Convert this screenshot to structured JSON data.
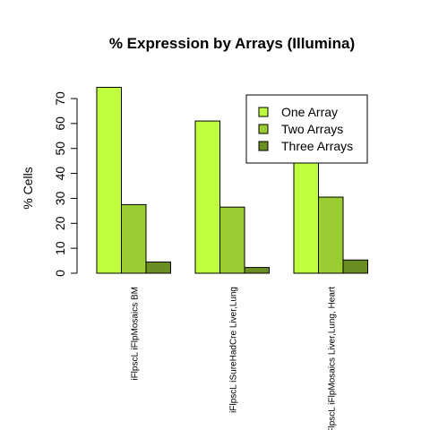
{
  "chart_data": {
    "type": "bar",
    "title": "% Expression by Arrays (Illumina)",
    "ylabel": "% Cells",
    "xlabel": "",
    "ylim": [
      0,
      75
    ],
    "yticks": [
      0,
      10,
      20,
      30,
      40,
      50,
      60,
      70
    ],
    "categories": [
      "iFlpscL iFlpMosaics BM",
      "iFlpscL iSureHadCre Liver,Lung",
      "iFlpscL iFlpMosaics Liver,Lung, Heart"
    ],
    "series": [
      {
        "name": "One Array",
        "color": "#c0ff3e",
        "values": [
          74.5,
          61,
          55
        ]
      },
      {
        "name": "Two Arrays",
        "color": "#9acd32",
        "values": [
          27.5,
          26.5,
          30.5
        ]
      },
      {
        "name": "Three Arrays",
        "color": "#6b8e23",
        "values": [
          4.5,
          2.3,
          5.3
        ]
      }
    ],
    "legend_position": "top-right",
    "grid": false
  }
}
